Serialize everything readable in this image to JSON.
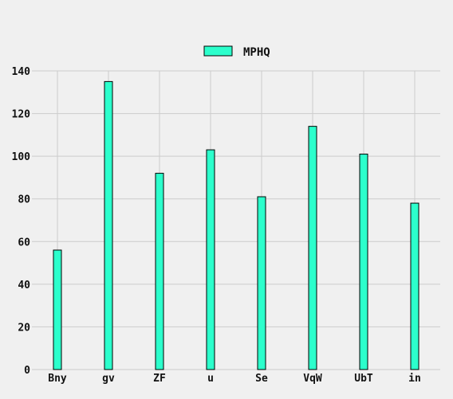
{
  "chart_data": {
    "type": "bar",
    "categories": [
      "Bny",
      "gv",
      "ZF",
      "u",
      "Se",
      "VqW",
      "UbT",
      "in"
    ],
    "series": [
      {
        "name": "MPHQ",
        "values": [
          56,
          135,
          92,
          103,
          81,
          114,
          101,
          78
        ],
        "color": "#2cffcc"
      }
    ],
    "ylim": [
      0,
      140
    ],
    "yticks": [
      0,
      20,
      40,
      60,
      80,
      100,
      120,
      140
    ],
    "grid": true,
    "legend": "top-center",
    "colors": {
      "background": "#f0f0f0",
      "grid": "#cccccc",
      "bar_edge": "#000000"
    }
  }
}
